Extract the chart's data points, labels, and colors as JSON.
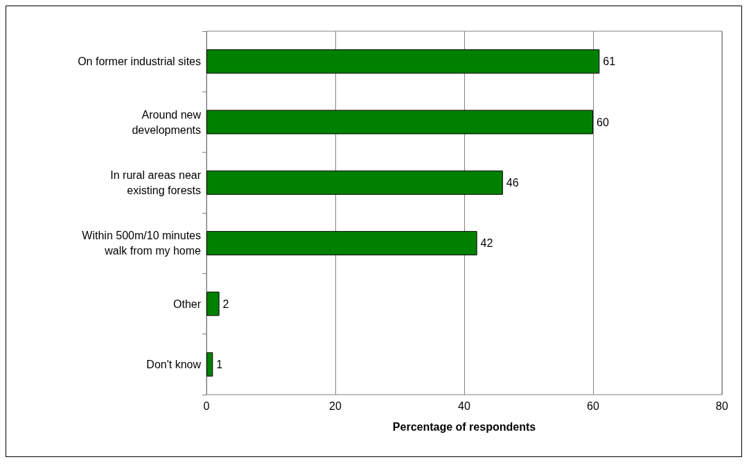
{
  "chart_data": {
    "type": "bar",
    "orientation": "horizontal",
    "xlabel": "Percentage of respondents",
    "categories": [
      "On former industrial sites",
      "Around new\ndevelopments",
      "In rural areas near\nexisting forests",
      "Within 500m/10 minutes\nwalk from my home",
      "Other",
      "Don't know"
    ],
    "values": [
      61,
      60,
      46,
      42,
      2,
      1
    ],
    "color": "#008000",
    "xlim": [
      0,
      80
    ],
    "xticks": [
      0,
      20,
      40,
      60,
      80
    ],
    "grid": "x",
    "data_labels": true
  }
}
